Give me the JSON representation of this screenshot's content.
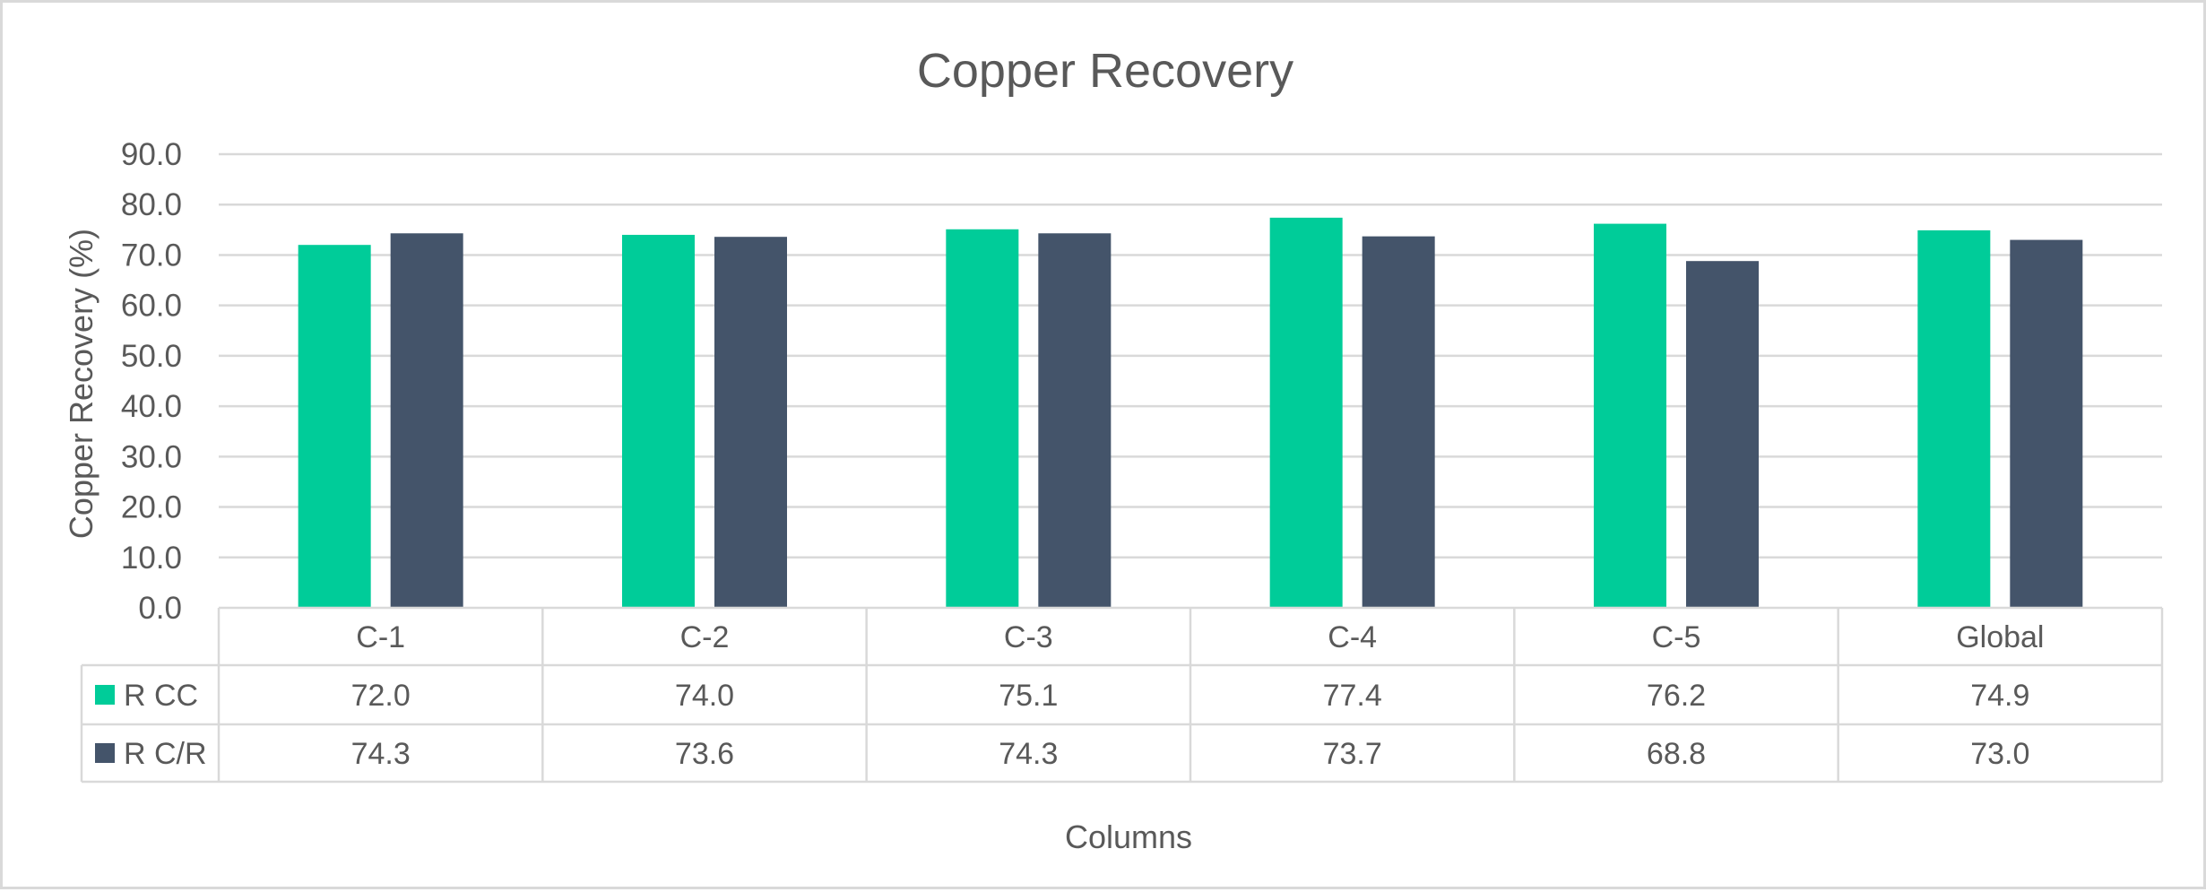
{
  "chart_data": {
    "type": "bar",
    "title": "Copper Recovery",
    "xlabel": "Columns",
    "ylabel": "Copper Recovery (%)",
    "ylim": [
      0,
      90
    ],
    "yticks": [
      "0.0",
      "10.0",
      "20.0",
      "30.0",
      "40.0",
      "50.0",
      "60.0",
      "70.0",
      "80.0",
      "90.0"
    ],
    "categories": [
      "C-1",
      "C-2",
      "C-3",
      "C-4",
      "C-5",
      "Global"
    ],
    "series": [
      {
        "name": "R CC",
        "color": "#00cc99",
        "values": [
          72.0,
          74.0,
          75.1,
          77.4,
          76.2,
          74.9
        ],
        "labels": [
          "72.0",
          "74.0",
          "75.1",
          "77.4",
          "76.2",
          "74.9"
        ]
      },
      {
        "name": "R C/R",
        "color": "#44546a",
        "values": [
          74.3,
          73.6,
          74.3,
          73.7,
          68.8,
          73.0
        ],
        "labels": [
          "74.3",
          "73.6",
          "74.3",
          "73.7",
          "68.8",
          "73.0"
        ]
      }
    ],
    "grid": true,
    "legend": "data-table"
  }
}
